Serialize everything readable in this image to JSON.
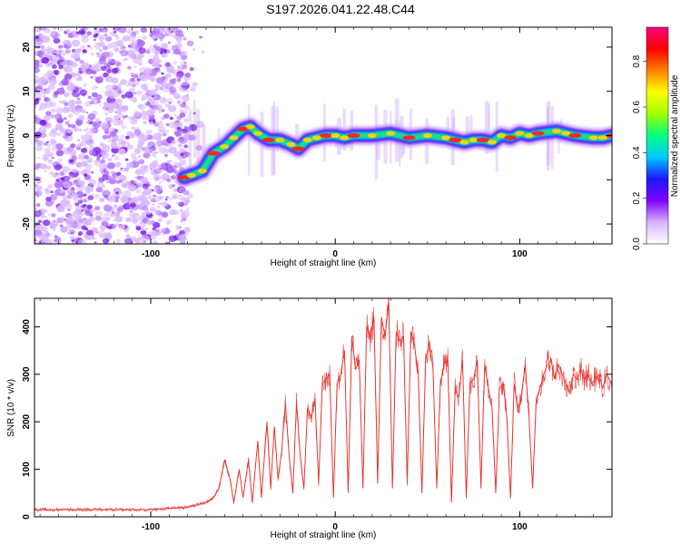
{
  "title": "S197.2026.041.22.48.C44",
  "chart_data": [
    {
      "type": "heatmap",
      "title": "S197.2026.041.22.48.C44",
      "xlabel": "Height of straight line (km)",
      "ylabel": "Frequency (Hz)",
      "xlim": [
        -163,
        150
      ],
      "ylim": [
        -24.5,
        24.5
      ],
      "x_ticks": [
        -100,
        0,
        100
      ],
      "y_ticks": [
        -20,
        -10,
        0,
        10,
        20
      ],
      "x_tick_labels": [
        "-100",
        "0",
        "100"
      ],
      "y_tick_labels": [
        "-20",
        "-10",
        "0",
        "10",
        "20"
      ],
      "colorbar": {
        "label": "Normalized spectral amplitude",
        "range": [
          0,
          0.95
        ],
        "ticks": [
          0,
          0.2,
          0.4,
          0.6,
          0.8
        ],
        "tick_labels": [
          "0.0",
          "0.2",
          "0.4",
          "0.6",
          "0.8"
        ],
        "colors": [
          "#ffffff",
          "#d9b3ff",
          "#8000ff",
          "#1a1aff",
          "#00c8ff",
          "#00ff80",
          "#a0ff00",
          "#ffff00",
          "#ff8000",
          "#ff0000",
          "#ff0080"
        ]
      },
      "ridge": {
        "x": [
          -82,
          -78,
          -72,
          -66,
          -60,
          -55,
          -50,
          -46,
          -42,
          -36,
          -30,
          -24,
          -20,
          -15,
          -10,
          -5,
          0,
          5,
          10,
          20,
          30,
          40,
          50,
          60,
          65,
          70,
          75,
          80,
          85,
          90,
          95,
          100,
          105,
          110,
          120,
          125,
          130,
          140,
          145,
          150
        ],
        "y": [
          -9.5,
          -9,
          -8,
          -4,
          -2.5,
          -0.5,
          1.5,
          2,
          0.5,
          -1,
          -1,
          -2,
          -3,
          -1,
          -0.5,
          0,
          0,
          -0.5,
          0,
          0,
          0.5,
          -0.5,
          0,
          -0.5,
          -1,
          -1.5,
          -1,
          -1,
          -1.5,
          0,
          -0.5,
          0.5,
          0,
          0.5,
          1,
          0.5,
          0,
          -0.5,
          -0.5,
          0
        ]
      },
      "noise_region_x": [
        -163,
        -80
      ]
    },
    {
      "type": "line",
      "xlabel": "Height of straight line (km)",
      "ylabel": "SNR (10 * v/v)",
      "xlim": [
        -163,
        150
      ],
      "ylim": [
        0,
        460
      ],
      "x_ticks": [
        -100,
        0,
        100
      ],
      "y_ticks": [
        0,
        100,
        200,
        300,
        400
      ],
      "x_tick_labels": [
        "-100",
        "0",
        "100"
      ],
      "y_tick_labels": [
        "0",
        "100",
        "200",
        "300",
        "400"
      ],
      "series": [
        {
          "name": "SNR",
          "color": "#e8302a",
          "x": [
            -163,
            -150,
            -140,
            -130,
            -120,
            -110,
            -100,
            -90,
            -80,
            -75,
            -70,
            -66,
            -63,
            -60,
            -57,
            -55,
            -52,
            -50,
            -47,
            -45,
            -42,
            -40,
            -37,
            -35,
            -33,
            -31,
            -29,
            -27,
            -25,
            -23,
            -21,
            -19,
            -17,
            -15,
            -13,
            -11,
            -9,
            -7,
            -5,
            -3,
            -1,
            1,
            3,
            5,
            7,
            9,
            11,
            13,
            15,
            17,
            19,
            21,
            23,
            25,
            27,
            29,
            31,
            33,
            35,
            37,
            39,
            41,
            43,
            45,
            47,
            49,
            51,
            53,
            55,
            57,
            59,
            61,
            63,
            65,
            67,
            69,
            71,
            73,
            75,
            77,
            79,
            81,
            83,
            85,
            87,
            89,
            91,
            93,
            95,
            97,
            99,
            101,
            103,
            105,
            107,
            109,
            111,
            113,
            115,
            117,
            119,
            121,
            123,
            125,
            127,
            129,
            131,
            133,
            135,
            137,
            139,
            141,
            143,
            145,
            147,
            150
          ],
          "y": [
            15,
            15,
            15,
            15,
            15,
            15,
            15,
            18,
            20,
            25,
            30,
            40,
            60,
            120,
            80,
            30,
            100,
            40,
            120,
            30,
            160,
            40,
            200,
            60,
            190,
            80,
            140,
            240,
            130,
            50,
            240,
            130,
            60,
            230,
            210,
            250,
            70,
            280,
            290,
            300,
            40,
            280,
            300,
            350,
            50,
            380,
            310,
            330,
            60,
            400,
            380,
            420,
            70,
            420,
            380,
            450,
            60,
            390,
            370,
            380,
            70,
            390,
            360,
            300,
            50,
            330,
            370,
            310,
            60,
            280,
            320,
            330,
            30,
            270,
            250,
            330,
            40,
            280,
            290,
            330,
            60,
            320,
            270,
            230,
            50,
            270,
            280,
            210,
            40,
            280,
            220,
            260,
            320,
            210,
            60,
            250,
            270,
            300,
            320,
            330,
            290,
            320,
            300,
            280,
            260,
            300,
            290,
            310,
            290,
            300,
            280,
            290,
            300,
            270,
            300,
            280
          ]
        }
      ]
    }
  ]
}
